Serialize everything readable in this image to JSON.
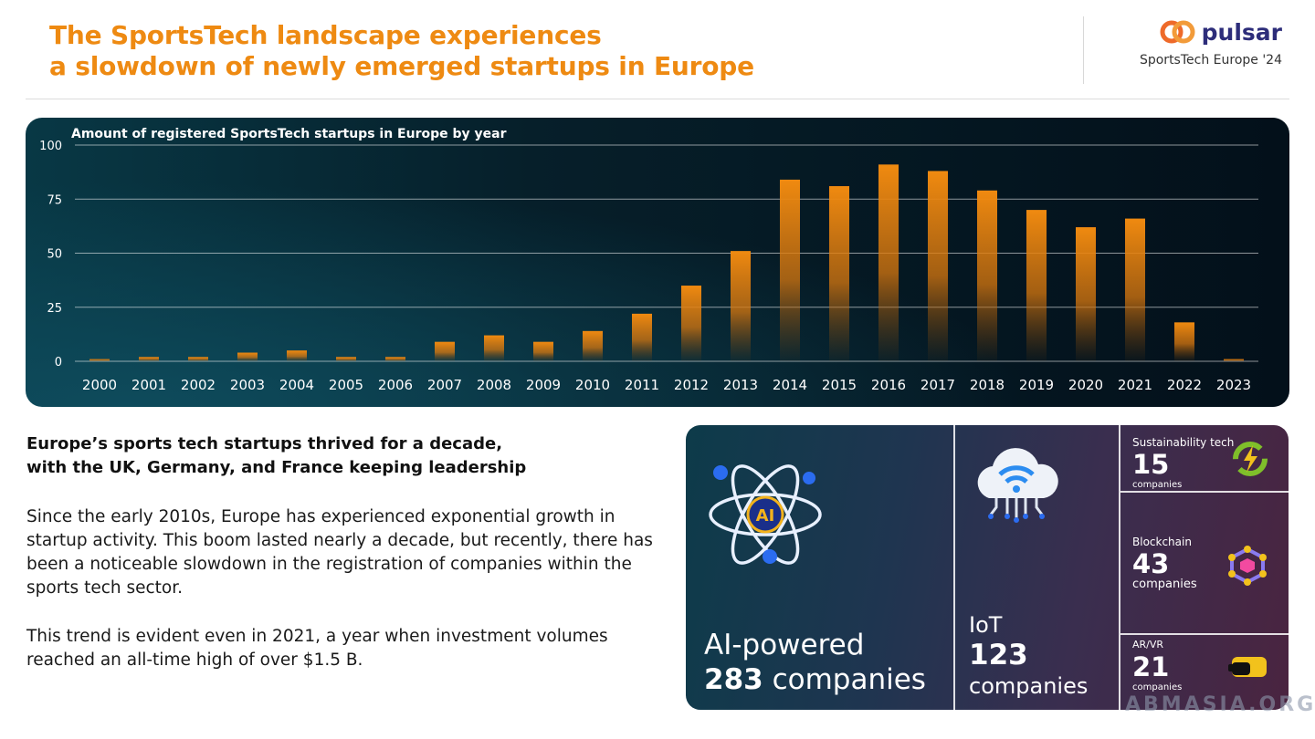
{
  "header": {
    "title_lines": [
      "The SportsTech landscape experiences",
      "a slowdown of newly emerged startups in Europe"
    ],
    "brand_name": "pulsar",
    "brand_sub": "SportsTech Europe '24"
  },
  "chart_data": {
    "type": "bar",
    "title": "Amount of registered SportsTech startups in Europe by year",
    "categories": [
      "2000",
      "2001",
      "2002",
      "2003",
      "2004",
      "2005",
      "2006",
      "2007",
      "2008",
      "2009",
      "2010",
      "2011",
      "2012",
      "2013",
      "2014",
      "2015",
      "2016",
      "2017",
      "2018",
      "2019",
      "2020",
      "2021",
      "2022",
      "2023"
    ],
    "values": [
      1,
      2,
      2,
      4,
      5,
      2,
      2,
      9,
      12,
      9,
      14,
      22,
      35,
      51,
      84,
      81,
      91,
      88,
      79,
      70,
      62,
      66,
      18,
      1
    ],
    "ylim": [
      0,
      100
    ],
    "yticks": [
      0,
      25,
      50,
      75,
      100
    ],
    "grid": true,
    "colors": {
      "bar_top": "#f08a10",
      "bar_bottom": "#f08a10"
    }
  },
  "text": {
    "subhead_lines": [
      "Europe’s sports tech startups thrived for a decade,",
      "with the UK, Germany, and France keeping leadership"
    ],
    "para1": "Since the early 2010s, Europe has experienced exponential growth in startup activity. This boom lasted nearly a decade, but recently, there has been a noticeable slowdown in the registration of companies within the sports tech sector.",
    "para2": "This trend is evident even in 2021, a year when investment volumes reached an all-time high of over $1.5 B."
  },
  "categories": {
    "ai": {
      "label": "AI-powered",
      "count": "283",
      "unit": "companies",
      "icon": "atom-ai-icon",
      "icon_text": "AI"
    },
    "iot": {
      "label": "IoT",
      "count": "123",
      "unit": "companies",
      "icon": "cloud-wifi-icon"
    },
    "sustainability": {
      "label": "Sustainability tech",
      "count": "15",
      "unit": "companies",
      "icon": "recycle-bolt-icon"
    },
    "blockchain": {
      "label": "Blockchain",
      "count": "43",
      "unit": "companies",
      "icon": "cube-network-icon"
    },
    "arvr": {
      "label": "AR/VR",
      "count": "21",
      "unit": "companies",
      "icon": "vr-headset-icon"
    }
  },
  "watermark": "ABMASIA.ORG"
}
